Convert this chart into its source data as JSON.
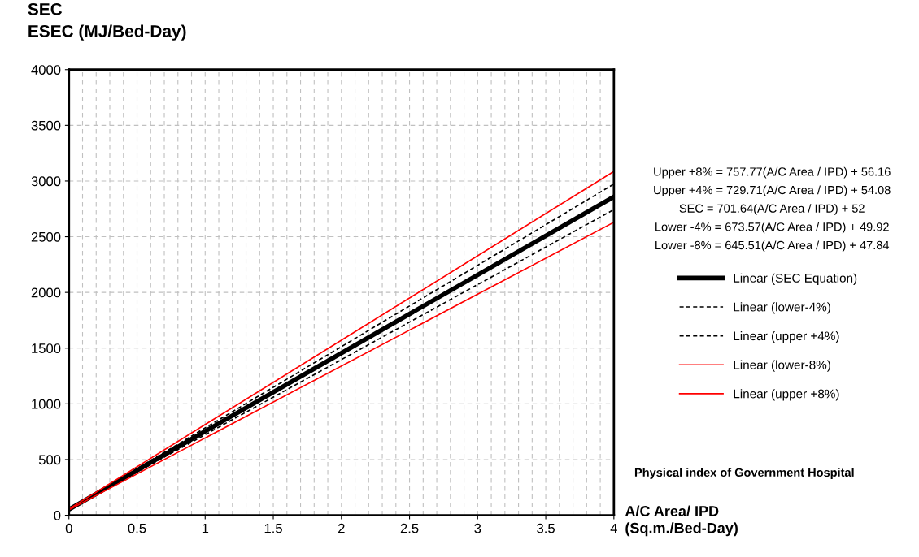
{
  "chart_data": {
    "type": "line",
    "ylabel": "SEC\nESEC (MJ/Bed-Day)",
    "xlabel": "A/C Area/ IPD\n(Sq.m./Bed-Day)",
    "x": [
      0,
      4
    ],
    "series": [
      {
        "name": "Linear (SEC Equation)",
        "color": "#000000",
        "values": [
          52,
          2859
        ],
        "line_style": "solid"
      },
      {
        "name": "Linear (lower-4%)",
        "color": "#000000",
        "values": [
          50,
          2744
        ],
        "line_style": "dashed"
      },
      {
        "name": "Linear (upper +4%)",
        "color": "#000000",
        "values": [
          54,
          2973
        ],
        "line_style": "dashed"
      },
      {
        "name": "Linear (lower-8%)",
        "color": "#ff0000",
        "values": [
          48,
          2630
        ],
        "line_style": "solid"
      },
      {
        "name": "Linear (upper +8%)",
        "color": "#ff0000",
        "values": [
          56,
          3087
        ],
        "line_style": "solid"
      }
    ],
    "xlim": [
      0,
      4
    ],
    "xticks": [
      0,
      0.5,
      1,
      1.5,
      2,
      2.5,
      3,
      3.5,
      4
    ],
    "ylim": [
      0,
      4000
    ],
    "yticks": [
      0,
      500,
      1000,
      1500,
      2000,
      2500,
      3000,
      3500,
      4000
    ],
    "grid": true,
    "legend": "right",
    "marker": "none",
    "annotations": [
      "Upper +8% = 757.77(A/C Area / IPD) + 56.16",
      "Upper +4% = 729.71(A/C Area / IPD) + 54.08",
      "SEC = 701.64(A/C Area / IPD) + 52",
      "Lower -4% = 673.57(A/C Area / IPD) + 49.92",
      "Lower -8% = 645.51(A/C Area / IPD) + 47.84",
      "Physical index of Government Hospital"
    ]
  }
}
